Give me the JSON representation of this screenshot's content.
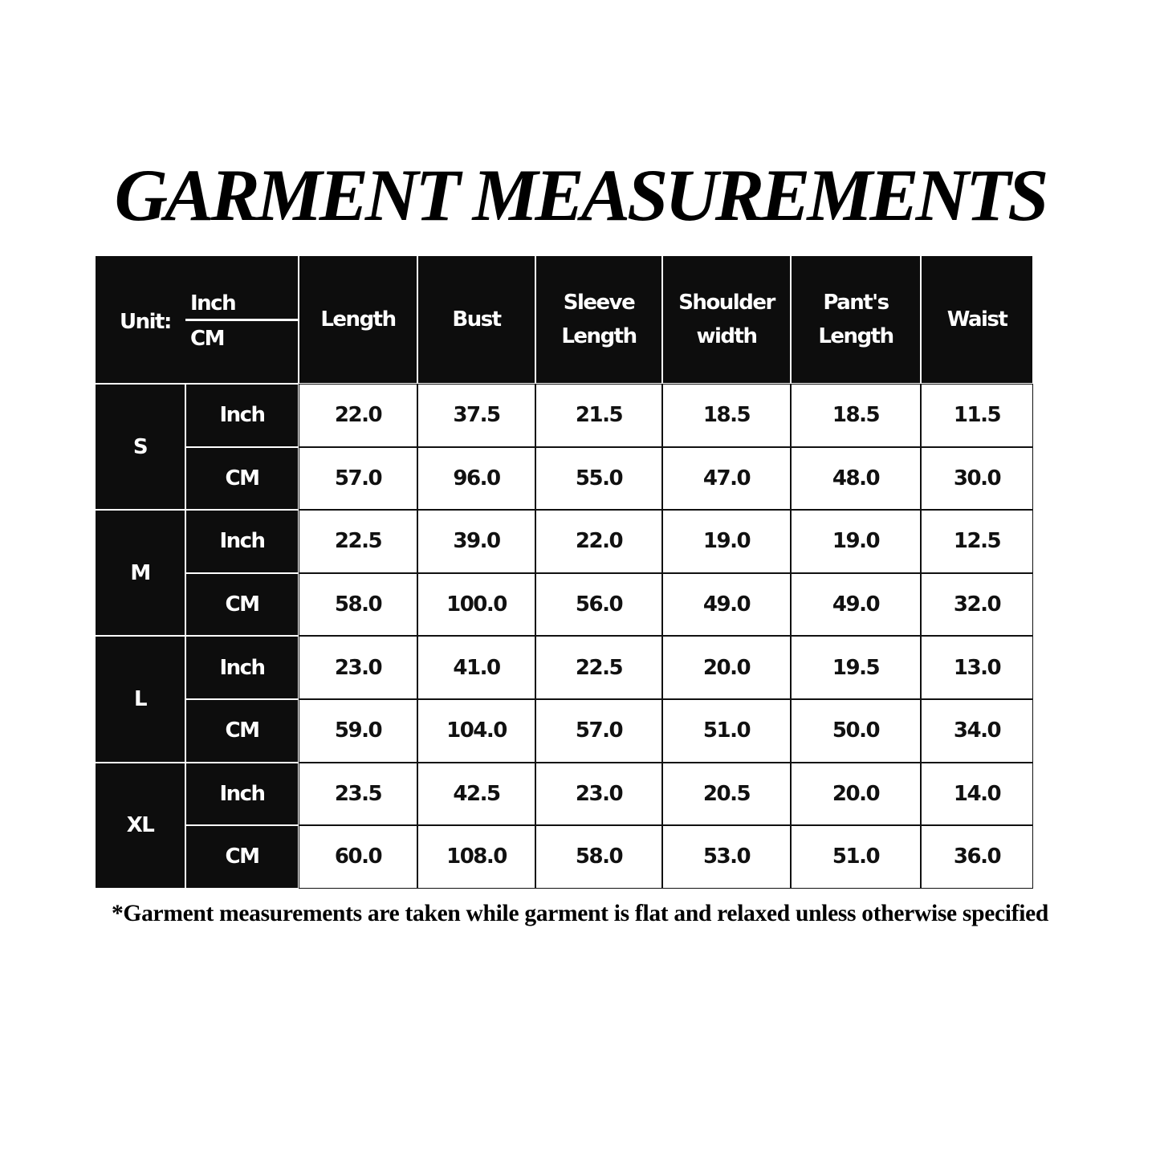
{
  "title": "GARMENT MEASUREMENTS",
  "table": {
    "unit_label": "Unit:",
    "unit_inch": "Inch",
    "unit_cm": "CM",
    "columns": [
      "Length",
      "Bust",
      "Sleeve Length",
      "Shoulder width",
      "Pant's Length",
      "Waist"
    ],
    "sizes": [
      {
        "size": "S",
        "rows": [
          {
            "unit": "Inch",
            "values": [
              "22.0",
              "37.5",
              "21.5",
              "18.5",
              "18.5",
              "11.5"
            ]
          },
          {
            "unit": "CM",
            "values": [
              "57.0",
              "96.0",
              "55.0",
              "47.0",
              "48.0",
              "30.0"
            ]
          }
        ]
      },
      {
        "size": "M",
        "rows": [
          {
            "unit": "Inch",
            "values": [
              "22.5",
              "39.0",
              "22.0",
              "19.0",
              "19.0",
              "12.5"
            ]
          },
          {
            "unit": "CM",
            "values": [
              "58.0",
              "100.0",
              "56.0",
              "49.0",
              "49.0",
              "32.0"
            ]
          }
        ]
      },
      {
        "size": "L",
        "rows": [
          {
            "unit": "Inch",
            "values": [
              "23.0",
              "41.0",
              "22.5",
              "20.0",
              "19.5",
              "13.0"
            ]
          },
          {
            "unit": "CM",
            "values": [
              "59.0",
              "104.0",
              "57.0",
              "51.0",
              "50.0",
              "34.0"
            ]
          }
        ]
      },
      {
        "size": "XL",
        "rows": [
          {
            "unit": "Inch",
            "values": [
              "23.5",
              "42.5",
              "23.0",
              "20.5",
              "20.0",
              "14.0"
            ]
          },
          {
            "unit": "CM",
            "values": [
              "60.0",
              "108.0",
              "58.0",
              "53.0",
              "51.0",
              "36.0"
            ]
          }
        ]
      }
    ]
  },
  "footnote": "*Garment measurements are taken while garment is flat and relaxed unless otherwise specified",
  "colors": {
    "header_bg": "#0d0d0d",
    "cell_bg": "#ffffff"
  }
}
